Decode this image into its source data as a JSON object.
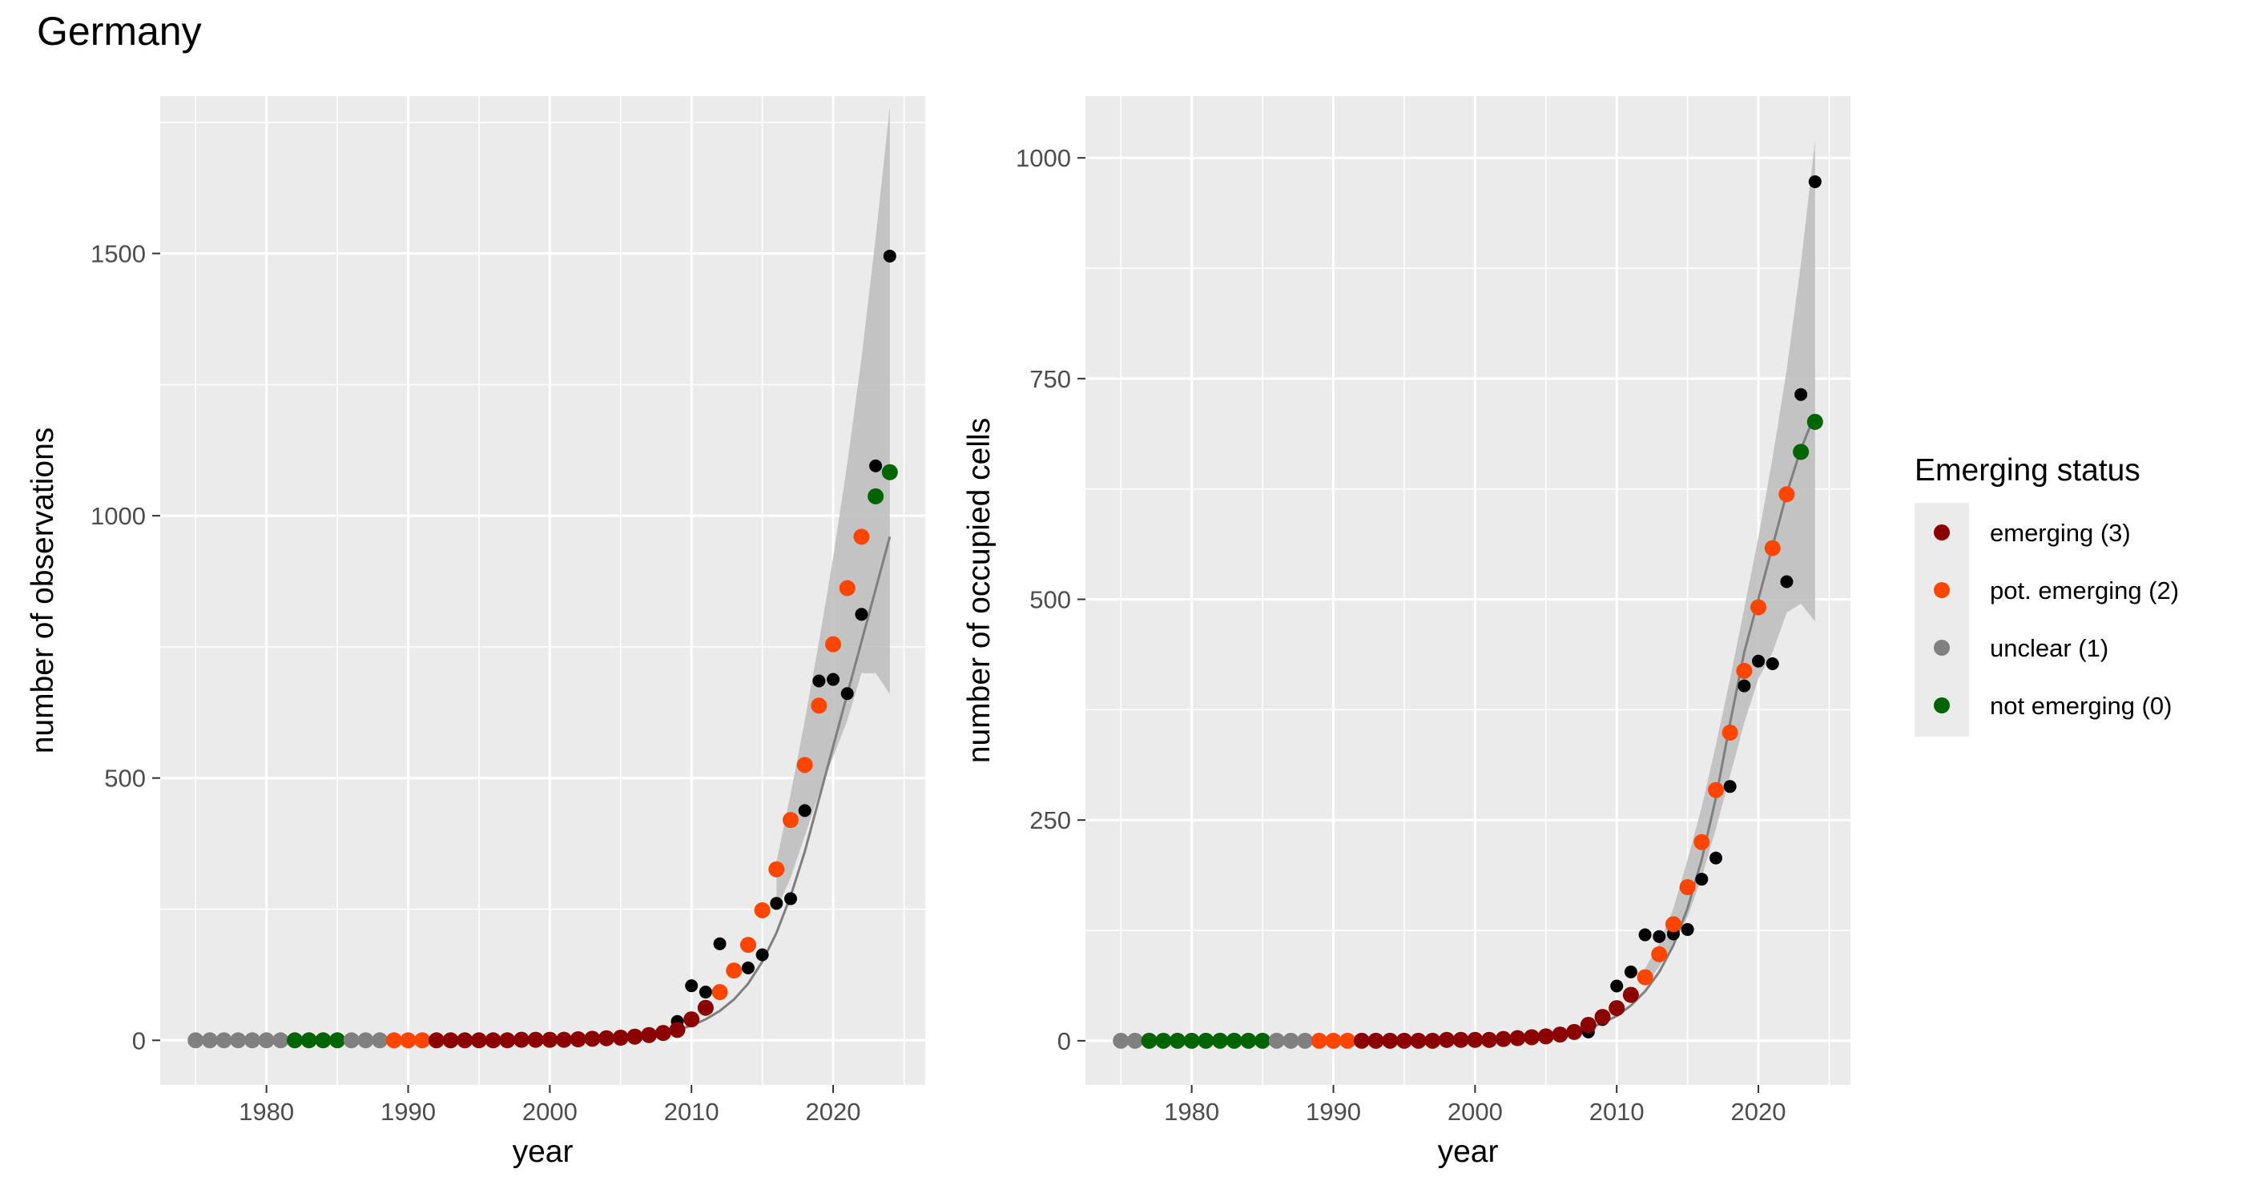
{
  "title": "Germany",
  "legend": {
    "title": "Emerging status",
    "items": [
      {
        "label": "emerging (3)",
        "color": "#8b0000"
      },
      {
        "label": "pot. emerging (2)",
        "color": "#ff4500"
      },
      {
        "label": "unclear (1)",
        "color": "#808080"
      },
      {
        "label": "not emerging (0)",
        "color": "#006400"
      }
    ]
  },
  "chart_data": [
    {
      "type": "scatter",
      "xlabel": "year",
      "ylabel": "number of observations",
      "xlim": [
        1972.5,
        2026.5
      ],
      "ylim": [
        -85,
        1800
      ],
      "x_ticks": [
        1980,
        1990,
        2000,
        2010,
        2020
      ],
      "y_ticks": [
        0,
        500,
        1000,
        1500
      ],
      "grid": true,
      "observed": {
        "color": "#000000",
        "points": [
          [
            2008,
            14
          ],
          [
            2009,
            36
          ],
          [
            2010,
            104
          ],
          [
            2011,
            92
          ],
          [
            2012,
            184
          ],
          [
            2014,
            138
          ],
          [
            2015,
            163
          ],
          [
            2016,
            261
          ],
          [
            2017,
            270
          ],
          [
            2018,
            438
          ],
          [
            2019,
            685
          ],
          [
            2020,
            688
          ],
          [
            2021,
            661
          ],
          [
            2022,
            812
          ],
          [
            2023,
            1095
          ],
          [
            2024,
            1495
          ]
        ]
      },
      "fitted": {
        "years": [
          1975,
          1976,
          1977,
          1978,
          1979,
          1980,
          1981,
          1982,
          1983,
          1984,
          1985,
          1986,
          1987,
          1988,
          1989,
          1990,
          1991,
          1992,
          1993,
          1994,
          1995,
          1996,
          1997,
          1998,
          1999,
          2000,
          2001,
          2002,
          2003,
          2004,
          2005,
          2006,
          2007,
          2008,
          2009,
          2010,
          2011,
          2012,
          2013,
          2014,
          2015,
          2016,
          2017,
          2018,
          2019,
          2020,
          2021,
          2022,
          2023,
          2024
        ],
        "values": [
          0,
          0,
          0,
          0,
          0,
          0,
          0,
          0,
          0,
          0,
          0,
          0,
          0,
          0,
          0,
          0,
          0,
          0,
          0,
          0,
          0,
          0,
          0,
          1,
          1,
          1,
          1,
          2,
          3,
          4,
          5,
          7,
          10,
          14,
          20,
          28,
          40,
          56,
          78,
          108,
          150,
          205,
          275,
          360,
          460,
          560,
          660,
          760,
          860,
          960
        ],
        "status": [
          1,
          1,
          1,
          1,
          1,
          1,
          1,
          0,
          0,
          0,
          0,
          1,
          1,
          1,
          2,
          2,
          2,
          3,
          3,
          3,
          3,
          3,
          3,
          3,
          3,
          3,
          3,
          3,
          3,
          3,
          3,
          3,
          3,
          3,
          3,
          3,
          3,
          2,
          2,
          2,
          2,
          2,
          2,
          2,
          2,
          2,
          2,
          2,
          0,
          0
        ],
        "points": [
          [
            2010,
            40
          ],
          [
            2011,
            62
          ],
          [
            2012,
            92
          ],
          [
            2013,
            133
          ],
          [
            2014,
            182
          ],
          [
            2015,
            248
          ],
          [
            2016,
            326
          ],
          [
            2017,
            420
          ],
          [
            2018,
            525
          ],
          [
            2019,
            638
          ],
          [
            2020,
            755
          ],
          [
            2021,
            862
          ],
          [
            2022,
            960
          ],
          [
            2023,
            1037
          ],
          [
            2024,
            1083
          ]
        ],
        "ci_lower": [
          [
            2016,
            250
          ],
          [
            2017,
            310
          ],
          [
            2018,
            390
          ],
          [
            2019,
            470
          ],
          [
            2020,
            540
          ],
          [
            2021,
            610
          ],
          [
            2022,
            700
          ],
          [
            2023,
            700
          ],
          [
            2024,
            660
          ]
        ],
        "ci_upper": [
          [
            2016,
            340
          ],
          [
            2017,
            470
          ],
          [
            2018,
            610
          ],
          [
            2019,
            760
          ],
          [
            2020,
            920
          ],
          [
            2021,
            1100
          ],
          [
            2022,
            1300
          ],
          [
            2023,
            1530
          ],
          [
            2024,
            1780
          ]
        ]
      }
    },
    {
      "type": "scatter",
      "xlabel": "year",
      "ylabel": "number of occupied cells",
      "xlim": [
        1972.5,
        2026.5
      ],
      "ylim": [
        -50,
        1070
      ],
      "x_ticks": [
        1980,
        1990,
        2000,
        2010,
        2020
      ],
      "y_ticks": [
        0,
        250,
        500,
        750,
        1000
      ],
      "grid": true,
      "observed": {
        "color": "#000000",
        "points": [
          [
            2008,
            10
          ],
          [
            2009,
            24
          ],
          [
            2010,
            62
          ],
          [
            2011,
            78
          ],
          [
            2012,
            120
          ],
          [
            2013,
            118
          ],
          [
            2014,
            121
          ],
          [
            2015,
            126
          ],
          [
            2016,
            183
          ],
          [
            2017,
            207
          ],
          [
            2018,
            288
          ],
          [
            2019,
            402
          ],
          [
            2020,
            430
          ],
          [
            2021,
            427
          ],
          [
            2022,
            520
          ],
          [
            2023,
            732
          ],
          [
            2024,
            973
          ]
        ]
      },
      "fitted": {
        "years": [
          1975,
          1976,
          1977,
          1978,
          1979,
          1980,
          1981,
          1982,
          1983,
          1984,
          1985,
          1986,
          1987,
          1988,
          1989,
          1990,
          1991,
          1992,
          1993,
          1994,
          1995,
          1996,
          1997,
          1998,
          1999,
          2000,
          2001,
          2002,
          2003,
          2004,
          2005,
          2006,
          2007,
          2008,
          2009,
          2010,
          2011,
          2012,
          2013,
          2014,
          2015,
          2016,
          2017,
          2018,
          2019,
          2020,
          2021,
          2022,
          2023,
          2024
        ],
        "values": [
          0,
          0,
          0,
          0,
          0,
          0,
          0,
          0,
          0,
          0,
          0,
          0,
          0,
          0,
          0,
          0,
          0,
          0,
          0,
          0,
          0,
          0,
          0,
          1,
          1,
          1,
          1,
          2,
          3,
          4,
          5,
          7,
          10,
          14,
          20,
          28,
          40,
          56,
          78,
          108,
          150,
          205,
          275,
          360,
          440,
          500,
          560,
          620,
          670,
          710
        ],
        "status": [
          1,
          1,
          0,
          0,
          0,
          0,
          0,
          0,
          0,
          0,
          0,
          1,
          1,
          1,
          2,
          2,
          2,
          3,
          3,
          3,
          3,
          3,
          3,
          3,
          3,
          3,
          3,
          3,
          3,
          3,
          3,
          3,
          3,
          3,
          3,
          3,
          3,
          2,
          2,
          2,
          2,
          2,
          2,
          2,
          2,
          2,
          2,
          2,
          0,
          0
        ],
        "points": [
          [
            2008,
            18
          ],
          [
            2009,
            27
          ],
          [
            2010,
            37
          ],
          [
            2011,
            52
          ],
          [
            2012,
            72
          ],
          [
            2013,
            98
          ],
          [
            2014,
            132
          ],
          [
            2015,
            174
          ],
          [
            2016,
            225
          ],
          [
            2017,
            284
          ],
          [
            2018,
            349
          ],
          [
            2019,
            419
          ],
          [
            2020,
            491
          ],
          [
            2021,
            558
          ],
          [
            2022,
            619
          ],
          [
            2023,
            667
          ],
          [
            2024,
            701
          ]
        ],
        "ci_lower": [
          [
            2012,
            62
          ],
          [
            2013,
            84
          ],
          [
            2014,
            110
          ],
          [
            2015,
            140
          ],
          [
            2016,
            185
          ],
          [
            2017,
            240
          ],
          [
            2018,
            300
          ],
          [
            2019,
            360
          ],
          [
            2020,
            410
          ],
          [
            2021,
            440
          ],
          [
            2022,
            485
          ],
          [
            2023,
            495
          ],
          [
            2024,
            475
          ]
        ],
        "ci_upper": [
          [
            2012,
            82
          ],
          [
            2013,
            110
          ],
          [
            2014,
            150
          ],
          [
            2015,
            205
          ],
          [
            2016,
            265
          ],
          [
            2017,
            335
          ],
          [
            2018,
            410
          ],
          [
            2019,
            490
          ],
          [
            2020,
            570
          ],
          [
            2021,
            660
          ],
          [
            2022,
            760
          ],
          [
            2023,
            880
          ],
          [
            2024,
            1020
          ]
        ]
      }
    }
  ]
}
